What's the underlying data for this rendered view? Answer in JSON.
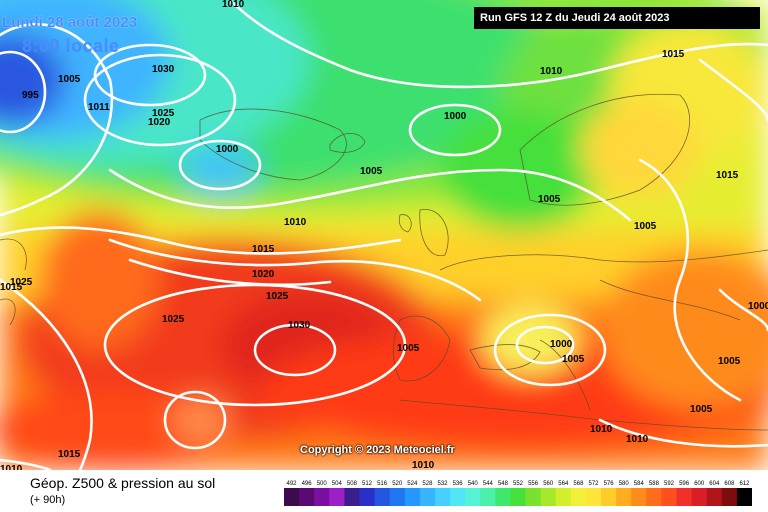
{
  "header": {
    "date_label": "Lundi 28 août 2023",
    "time_label": "8:00 locale",
    "run_label": "Run GFS 12 Z du Jeudi 24 août 2023"
  },
  "footer": {
    "title": "Géop. Z500 & pression au sol",
    "lead_time": "(+ 90h)",
    "copyright": "Copyright © 2023 Meteociel.fr"
  },
  "isobar_labels": [
    "1010",
    "1005",
    "995",
    "1030",
    "1011",
    "1025",
    "1020",
    "1000",
    "1005",
    "1010",
    "1015",
    "1000",
    "1010",
    "1015",
    "1020",
    "1025",
    "1025",
    "1030",
    "1025",
    "1005",
    "1015",
    "1005",
    "1010",
    "1015",
    "1005",
    "1000",
    "1005",
    "1005",
    "1010",
    "1010",
    "1000",
    "1005",
    "1015",
    "1010"
  ],
  "legend": {
    "ticks": [
      "492",
      "496",
      "500",
      "504",
      "508",
      "512",
      "516",
      "520",
      "524",
      "528",
      "532",
      "536",
      "540",
      "544",
      "548",
      "552",
      "556",
      "560",
      "564",
      "568",
      "572",
      "576",
      "580",
      "584",
      "588",
      "592",
      "596",
      "600",
      "604",
      "608",
      "612"
    ],
    "colors": [
      "#3d0b4b",
      "#5a0a72",
      "#7a0fa0",
      "#9b20c8",
      "#3a1e8c",
      "#2a2fc8",
      "#2456e0",
      "#1f78f0",
      "#2399ff",
      "#35b6ff",
      "#46d0ff",
      "#4fe6f5",
      "#55f2d6",
      "#4df0a8",
      "#3ee86c",
      "#45e03a",
      "#7ae22c",
      "#a8e82a",
      "#d2ef2c",
      "#f3f03a",
      "#ffe53a",
      "#ffcc2a",
      "#ffad1e",
      "#ff8c1a",
      "#ff6d1a",
      "#ff4f1e",
      "#f2302a",
      "#d81f26",
      "#b01418",
      "#7d0c0e",
      "#000000"
    ],
    "accent_ocean_high": "#ff3a1a",
    "accent_low": "#36b8ff"
  }
}
